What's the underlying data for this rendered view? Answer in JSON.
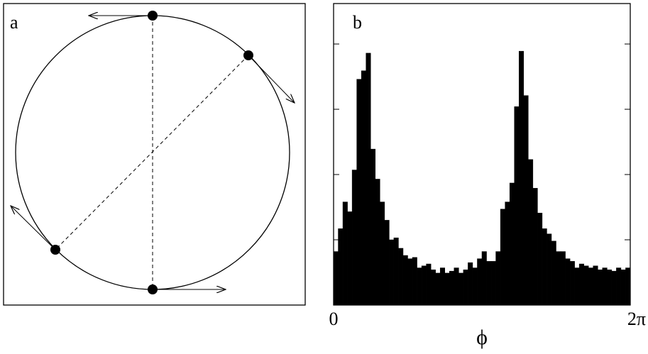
{
  "panel_a": {
    "label": "a"
  },
  "chart_data": {
    "type": "histogram",
    "label": "b",
    "x_label": "ϕ",
    "bins": [
      0,
      0.0982,
      0.1963,
      0.2945,
      0.3927,
      0.4909,
      0.589,
      0.6872,
      0.7854,
      0.8836,
      0.9817,
      1.0799,
      1.1781,
      1.2763,
      1.3744,
      1.4726,
      1.5708,
      1.669,
      1.7671,
      1.8653,
      1.9635,
      2.0617,
      2.1598,
      2.258,
      2.3562,
      2.4544,
      2.5525,
      2.6507,
      2.7489,
      2.8471,
      2.9452,
      3.0434,
      3.1416,
      3.2398,
      3.3379,
      3.4361,
      3.5343,
      3.6325,
      3.7306,
      3.8288,
      3.927,
      4.0252,
      4.1233,
      4.2215,
      4.3197,
      4.4179,
      4.516,
      4.6142,
      4.7124,
      4.8106,
      4.9087,
      5.0069,
      5.1051,
      5.2033,
      5.3014,
      5.3996,
      5.4978,
      5.596,
      5.6941,
      5.7923,
      5.8905,
      5.9887,
      6.0868,
      6.185,
      6.2832
    ],
    "values": [
      0.82,
      1.17,
      1.58,
      1.43,
      2.07,
      3.46,
      3.59,
      3.86,
      2.39,
      1.93,
      1.58,
      1.3,
      1.0,
      1.03,
      0.87,
      0.76,
      0.71,
      0.73,
      0.57,
      0.6,
      0.63,
      0.54,
      0.49,
      0.57,
      0.49,
      0.52,
      0.57,
      0.49,
      0.54,
      0.65,
      0.57,
      0.71,
      0.82,
      0.67,
      0.67,
      0.82,
      1.47,
      1.58,
      1.87,
      3.04,
      3.89,
      3.21,
      2.23,
      1.79,
      1.41,
      1.17,
      1.09,
      0.98,
      0.82,
      0.82,
      0.71,
      0.67,
      0.57,
      0.63,
      0.6,
      0.57,
      0.6,
      0.54,
      0.57,
      0.54,
      0.52,
      0.57,
      0.54,
      0.57
    ],
    "color": "#000000",
    "xlim": [
      0,
      6.2832
    ],
    "xticks": [
      0,
      {
        "value": 6.2832,
        "label": "2π"
      }
    ],
    "ylim": [
      0,
      4.62
    ],
    "yticks": [
      1,
      2,
      3,
      4
    ]
  }
}
